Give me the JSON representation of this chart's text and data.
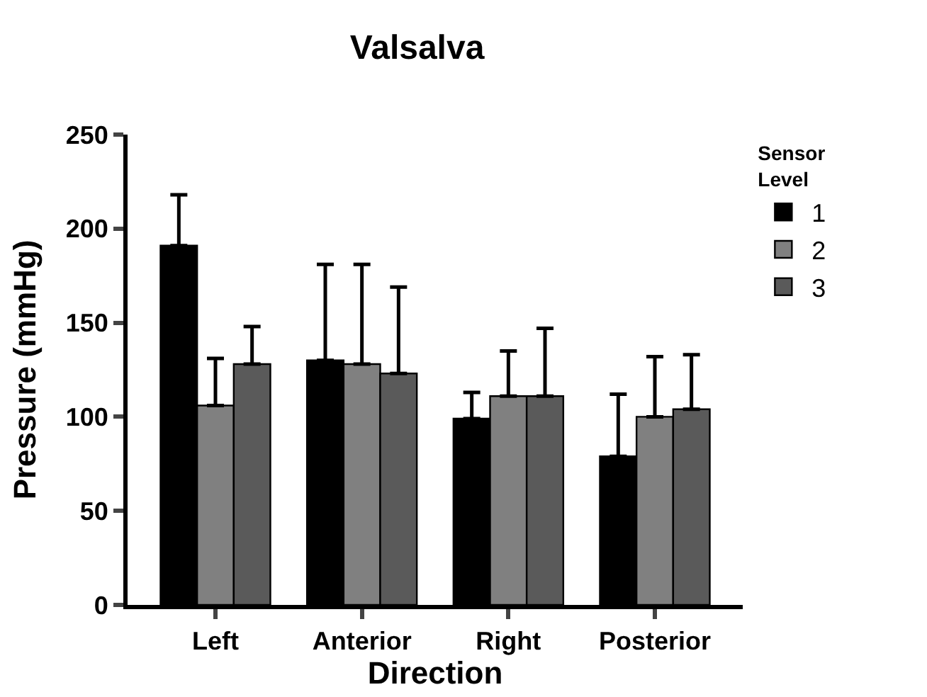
{
  "chart_data": {
    "type": "bar",
    "title": "Valsalva",
    "xlabel": "Direction",
    "ylabel": "Pressure (mmHg)",
    "legend_title": "Sensor Level",
    "categories": [
      "Left",
      "Anterior",
      "Right",
      "Posterior"
    ],
    "series": [
      {
        "name": "1",
        "color": "#000000",
        "values": [
          191,
          130,
          99,
          79
        ],
        "errors": [
          [
            191,
            218
          ],
          [
            130,
            181
          ],
          [
            99,
            113
          ],
          [
            79,
            112
          ]
        ]
      },
      {
        "name": "2",
        "color": "#808080",
        "values": [
          106,
          128,
          111,
          100
        ],
        "errors": [
          [
            106,
            131
          ],
          [
            128,
            181
          ],
          [
            111,
            135
          ],
          [
            100,
            132
          ]
        ]
      },
      {
        "name": "3",
        "color": "#5a5a5a",
        "values": [
          128,
          123,
          111,
          104
        ],
        "errors": [
          [
            128,
            148
          ],
          [
            123,
            169
          ],
          [
            111,
            147
          ],
          [
            104,
            133
          ]
        ]
      }
    ],
    "ylim": [
      0,
      250
    ],
    "yticks": [
      0,
      50,
      100,
      150,
      200,
      250
    ],
    "legend": "top right"
  }
}
